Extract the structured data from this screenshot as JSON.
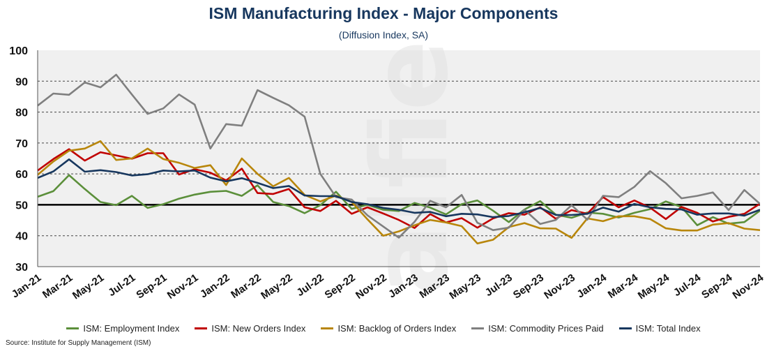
{
  "source": "Source: Institute for Supply Management (ISM)",
  "chart_data": {
    "type": "line",
    "title": "ISM Manufacturing Index - Major Components",
    "subtitle": "(Diffusion Index, SA)",
    "ylim": [
      30,
      100
    ],
    "yticks": [
      30,
      40,
      50,
      60,
      70,
      80,
      90,
      100
    ],
    "reference_line": 50,
    "grid": "horizontal dashed",
    "legend_position": "bottom",
    "x": [
      "Jan-21",
      "Feb-21",
      "Mar-21",
      "Apr-21",
      "May-21",
      "Jun-21",
      "Jul-21",
      "Aug-21",
      "Sep-21",
      "Oct-21",
      "Nov-21",
      "Dec-21",
      "Jan-22",
      "Feb-22",
      "Mar-22",
      "Apr-22",
      "May-22",
      "Jun-22",
      "Jul-22",
      "Aug-22",
      "Sep-22",
      "Oct-22",
      "Nov-22",
      "Dec-22",
      "Jan-23",
      "Feb-23",
      "Mar-23",
      "Apr-23",
      "May-23",
      "Jun-23",
      "Jul-23",
      "Aug-23",
      "Sep-23",
      "Oct-23",
      "Nov-23",
      "Dec-23",
      "Jan-24",
      "Feb-24",
      "Mar-24",
      "Apr-24",
      "May-24",
      "Jun-24",
      "Jul-24",
      "Aug-24",
      "Sep-24",
      "Oct-24",
      "Nov-24"
    ],
    "xticks": [
      "Jan-21",
      "Mar-21",
      "May-21",
      "Jul-21",
      "Sep-21",
      "Nov-21",
      "Jan-22",
      "Mar-22",
      "May-22",
      "Jul-22",
      "Sep-22",
      "Nov-22",
      "Jan-23",
      "Mar-23",
      "May-23",
      "Jul-23",
      "Sep-23",
      "Nov-23",
      "Jan-24",
      "Mar-24",
      "May-24",
      "Jul-24",
      "Sep-24",
      "Nov-24"
    ],
    "series": [
      {
        "name": "ISM: Employment Index",
        "color": "#5b8f3a",
        "values": [
          52.6,
          54.4,
          59.6,
          55.1,
          50.9,
          49.9,
          52.9,
          49.0,
          50.2,
          52.0,
          53.3,
          54.2,
          54.5,
          52.9,
          56.3,
          50.9,
          49.6,
          47.3,
          49.9,
          54.2,
          48.7,
          50.0,
          48.4,
          48.0,
          50.6,
          49.1,
          46.9,
          50.2,
          51.4,
          48.1,
          44.4,
          48.5,
          51.2,
          46.8,
          45.8,
          47.5,
          47.1,
          45.9,
          47.4,
          48.6,
          51.1,
          49.3,
          43.4,
          46.0,
          43.9,
          44.4,
          48.1
        ]
      },
      {
        "name": "ISM: New Orders Index",
        "color": "#c00000",
        "values": [
          61.1,
          64.8,
          68.0,
          64.3,
          67.0,
          66.0,
          64.9,
          66.7,
          66.7,
          59.8,
          61.5,
          60.4,
          57.9,
          61.7,
          53.8,
          53.5,
          55.1,
          49.2,
          48.0,
          51.3,
          47.1,
          49.2,
          47.2,
          45.1,
          42.5,
          47.0,
          44.3,
          45.7,
          42.6,
          45.6,
          47.3,
          46.8,
          49.2,
          45.5,
          48.3,
          47.1,
          52.5,
          49.2,
          51.4,
          49.1,
          45.4,
          49.3,
          47.4,
          44.6,
          46.1,
          47.1,
          50.4
        ]
      },
      {
        "name": "ISM: Backlog of Orders Index",
        "color": "#b8860b",
        "values": [
          59.7,
          64.0,
          67.5,
          68.2,
          70.6,
          64.5,
          65.0,
          68.2,
          64.8,
          63.6,
          61.9,
          62.8,
          56.4,
          65.0,
          60.0,
          56.0,
          58.7,
          53.2,
          51.1,
          53.0,
          50.9,
          45.3,
          40.0,
          41.4,
          43.4,
          45.1,
          44.3,
          43.1,
          37.5,
          38.7,
          42.8,
          44.1,
          42.4,
          42.3,
          39.3,
          45.6,
          44.7,
          46.3,
          46.3,
          45.4,
          42.4,
          41.7,
          41.7,
          43.6,
          44.1,
          42.3,
          41.8
        ]
      },
      {
        "name": "ISM: Commodity Prices Paid",
        "color": "#7f7f7f",
        "values": [
          82.1,
          86.0,
          85.6,
          89.6,
          88.0,
          92.1,
          85.7,
          79.4,
          81.2,
          85.7,
          82.4,
          68.2,
          76.1,
          75.6,
          87.1,
          84.6,
          82.2,
          78.5,
          60.0,
          52.5,
          51.7,
          46.6,
          43.0,
          39.4,
          44.5,
          51.3,
          49.2,
          53.2,
          44.2,
          41.8,
          42.6,
          48.4,
          43.8,
          45.1,
          49.9,
          45.2,
          52.9,
          52.5,
          55.8,
          60.9,
          57.0,
          52.1,
          52.9,
          54.0,
          48.3,
          54.8,
          50.3
        ]
      },
      {
        "name": "ISM: Total Index",
        "color": "#17375e",
        "values": [
          58.7,
          60.8,
          64.7,
          60.7,
          61.2,
          60.6,
          59.5,
          59.9,
          61.1,
          60.8,
          61.1,
          58.8,
          57.6,
          58.6,
          57.1,
          55.4,
          56.1,
          53.0,
          52.8,
          52.8,
          50.9,
          50.2,
          49.0,
          48.4,
          47.4,
          47.7,
          46.3,
          47.1,
          46.9,
          46.0,
          46.4,
          47.6,
          49.0,
          46.7,
          46.7,
          47.1,
          49.1,
          47.8,
          50.3,
          49.2,
          48.7,
          48.5,
          46.8,
          47.2,
          47.2,
          46.5,
          48.4
        ]
      }
    ]
  },
  "icons": {
    "legend_marker": "line-segment-icon"
  }
}
